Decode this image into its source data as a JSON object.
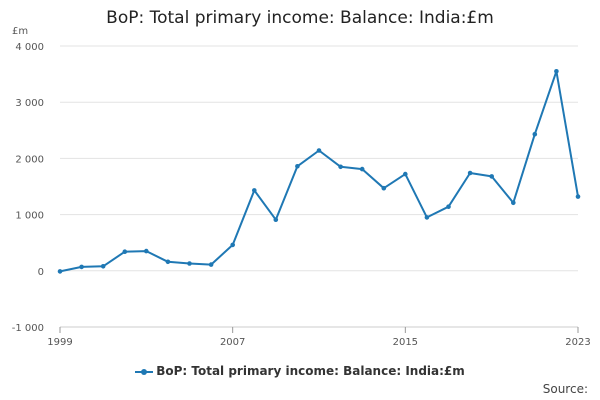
{
  "chart_data": {
    "type": "line",
    "title": "BoP: Total primary income: Balance: India:£m",
    "ylabel": "£m",
    "xlabel": "",
    "ylim": [
      -1000,
      4000
    ],
    "yticks": [
      -1000,
      0,
      1000,
      2000,
      3000,
      4000
    ],
    "ytick_labels": [
      "-1 000",
      "0",
      "1 000",
      "2 000",
      "3 000",
      "4 000"
    ],
    "xlim": [
      1999,
      2023
    ],
    "xticks": [
      1999,
      2007,
      2015,
      2023
    ],
    "xtick_labels": [
      "1999",
      "2007",
      "2015",
      "2023"
    ],
    "grid": true,
    "legend_position": "bottom",
    "series": [
      {
        "name": "BoP: Total primary income: Balance: India:£m",
        "color": "#1f78b4",
        "x": [
          1999,
          2000,
          2001,
          2002,
          2003,
          2004,
          2005,
          2006,
          2007,
          2008,
          2009,
          2010,
          2011,
          2012,
          2013,
          2014,
          2015,
          2016,
          2017,
          2018,
          2019,
          2020,
          2021,
          2022,
          2023
        ],
        "values": [
          -10,
          70,
          80,
          340,
          350,
          160,
          130,
          110,
          460,
          1430,
          910,
          1860,
          2140,
          1850,
          1810,
          1470,
          1720,
          950,
          1140,
          1740,
          1680,
          1210,
          2430,
          3550,
          1320
        ]
      }
    ]
  },
  "legend": {
    "label": "BoP: Total primary income: Balance: India:£m"
  },
  "footer": {
    "source_label": "Source:"
  }
}
